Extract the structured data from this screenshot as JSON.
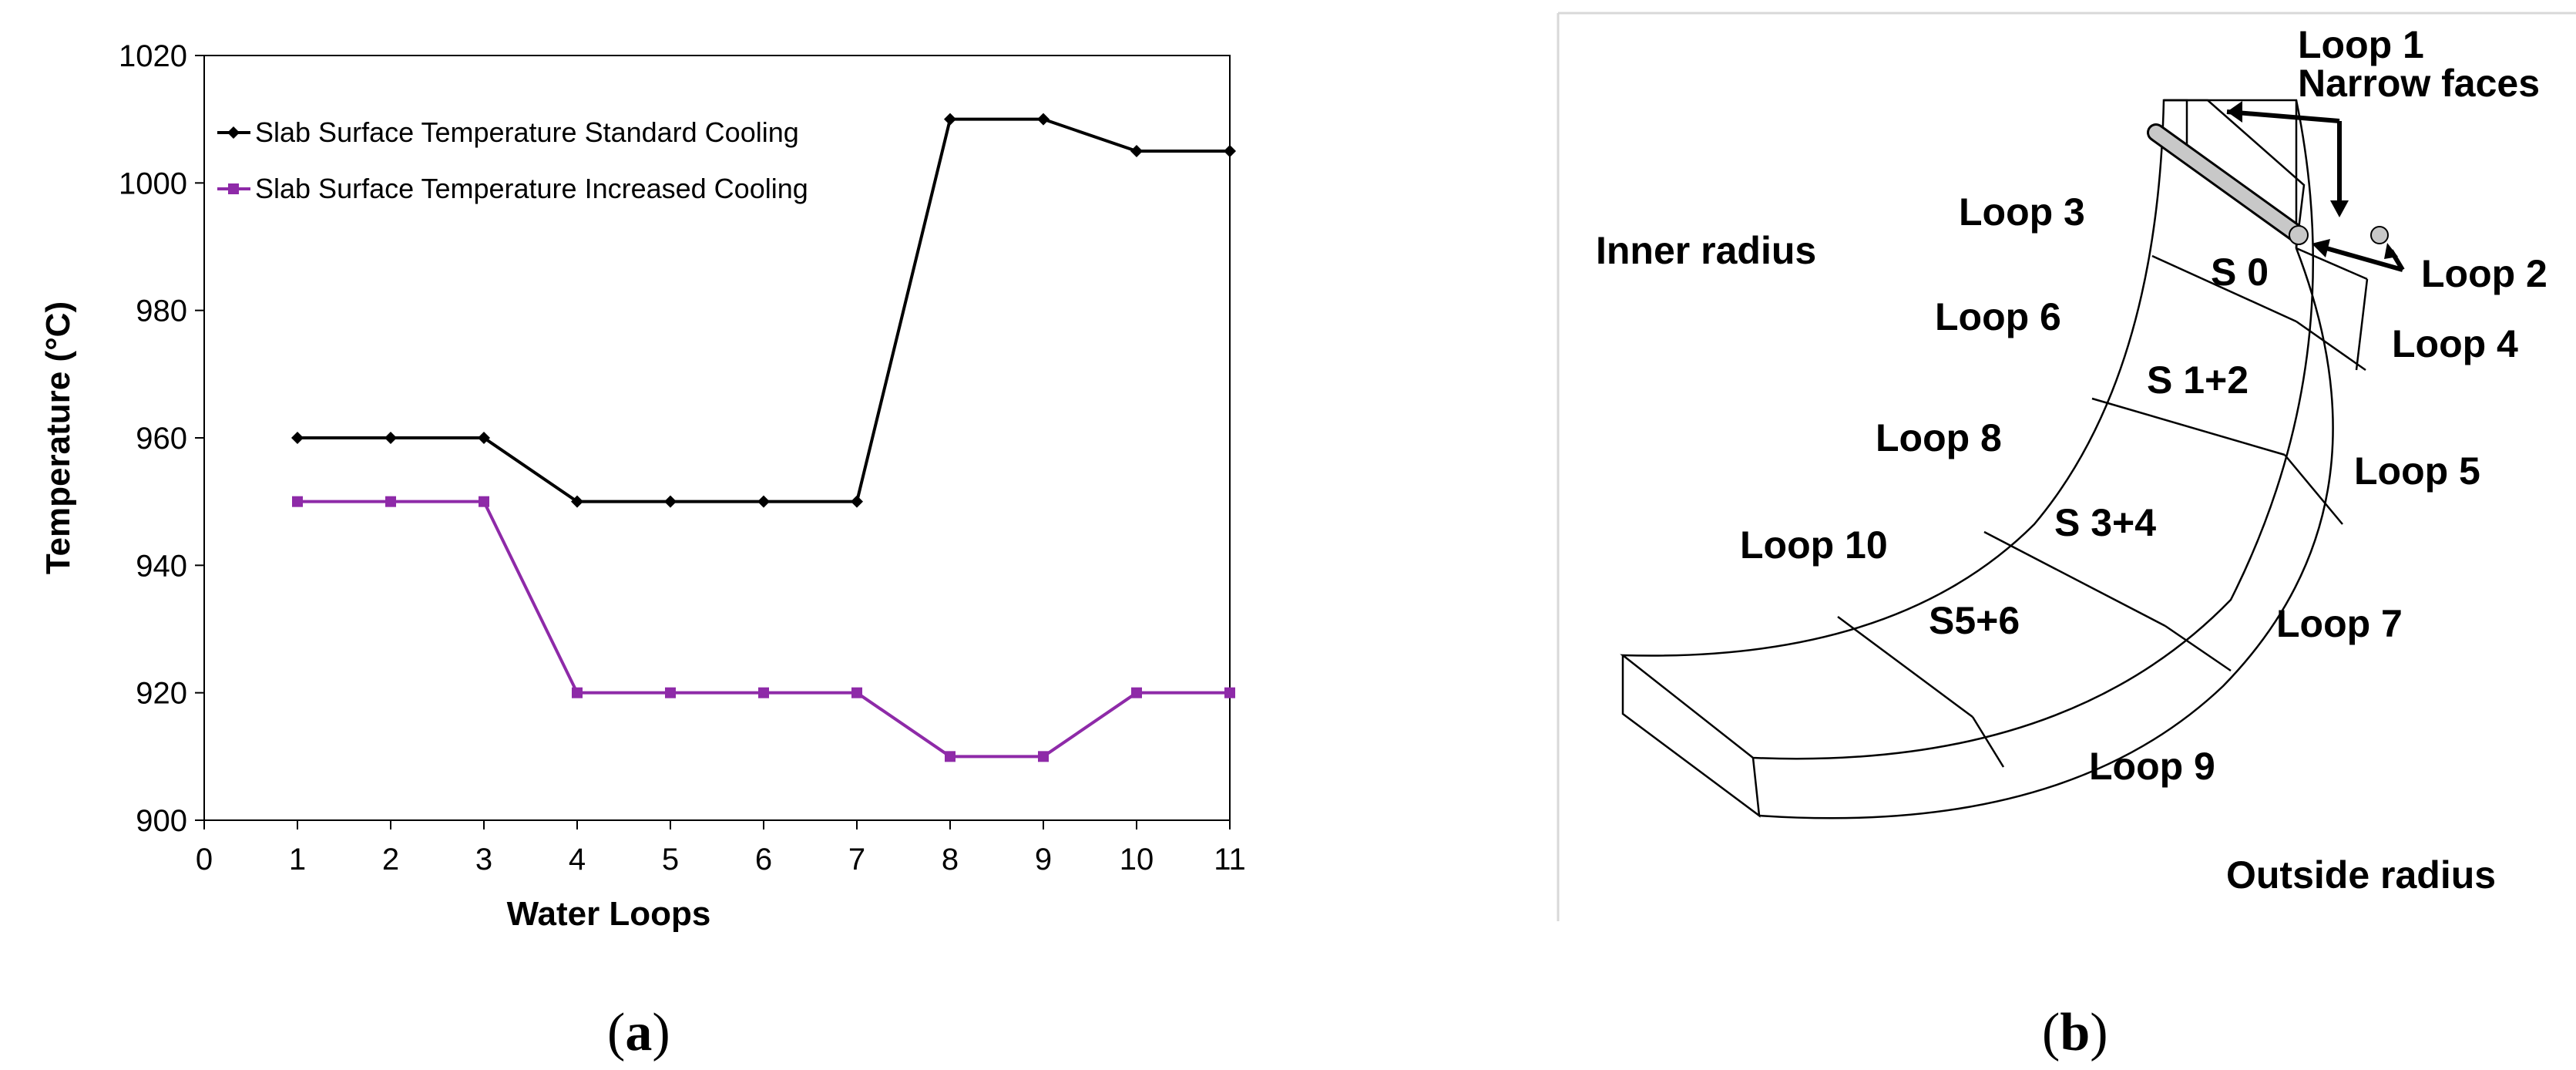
{
  "chart_data": {
    "type": "line",
    "title": "",
    "xlabel": "Water Loops",
    "ylabel": "Temperature (°C)",
    "xlim": [
      0,
      11
    ],
    "ylim": [
      900,
      1020
    ],
    "x_ticks": [
      "0",
      "1",
      "2",
      "3",
      "4",
      "5",
      "6",
      "7",
      "8",
      "9",
      "10",
      "11"
    ],
    "y_ticks": [
      "900",
      "920",
      "940",
      "960",
      "980",
      "1000",
      "1020"
    ],
    "grid": false,
    "legend_position": "top-left",
    "x": [
      1,
      2,
      3,
      4,
      5,
      6,
      7,
      8,
      9,
      10,
      11
    ],
    "series": [
      {
        "name": "Slab Surface Temperature Standard Cooling",
        "color": "#000000",
        "marker": "diamond",
        "values": [
          960,
          960,
          960,
          950,
          950,
          950,
          950,
          1010,
          1010,
          1005,
          1005
        ]
      },
      {
        "name": "Slab Surface Temperature Increased Cooling",
        "color": "#8e2aa8",
        "marker": "square",
        "values": [
          950,
          950,
          950,
          920,
          920,
          920,
          920,
          910,
          910,
          920,
          920
        ]
      }
    ]
  },
  "diagram": {
    "inner_radius": "Inner radius",
    "outside_radius": "Outside radius",
    "narrow_faces": "Narrow faces",
    "loops": [
      "Loop 1",
      "Loop 2",
      "Loop 3",
      "Loop 4",
      "Loop 5",
      "Loop 6",
      "Loop 7",
      "Loop 8",
      "Loop 9",
      "Loop 10"
    ],
    "segments": [
      "S 0",
      "S 1+2",
      "S 3+4",
      "S5+6"
    ]
  },
  "panels": {
    "a": "a",
    "b": "b"
  }
}
